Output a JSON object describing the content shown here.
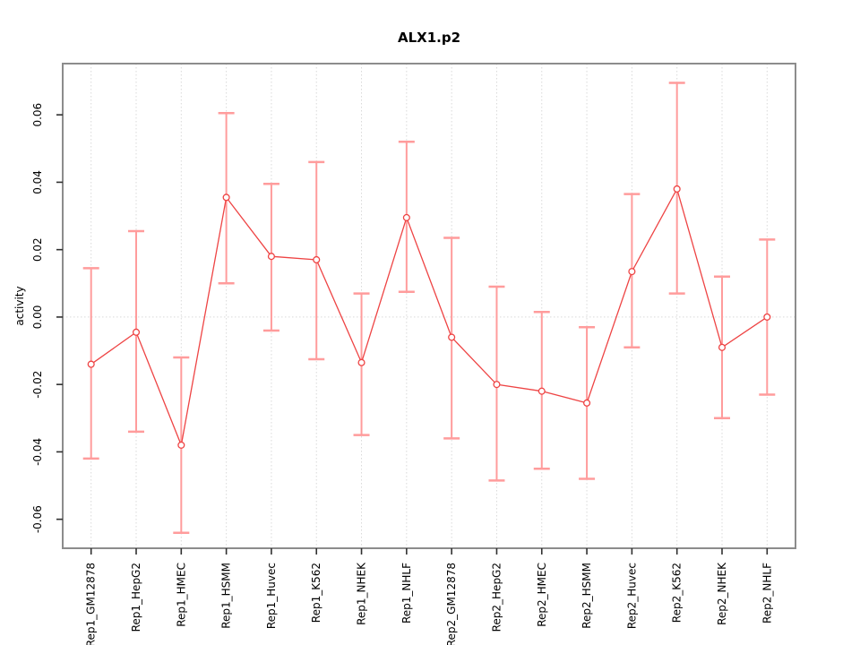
{
  "figure": {
    "title": "ALX1.p2"
  },
  "chart_data": {
    "type": "line",
    "title": "ALX1.p2",
    "xlabel": "",
    "ylabel": "activity",
    "legend": "none",
    "grid": {
      "vertical": "dotted-per-category",
      "horizontal": "dotted-at-zero"
    },
    "ylim": [
      -0.0686,
      0.0752
    ],
    "yticks": [
      0.06,
      0.04,
      0.02,
      0.0,
      -0.02,
      -0.04,
      -0.06
    ],
    "ytick_labels": [
      "0.06",
      "0.04",
      "0.02",
      "0.00",
      "-0.02",
      "-0.04",
      "-0.06"
    ],
    "categories": [
      "Rep1_GM12878",
      "Rep1_HepG2",
      "Rep1_HMEC",
      "Rep1_HSMM",
      "Rep1_Huvec",
      "Rep1_K562",
      "Rep1_NHEK",
      "Rep1_NHLF",
      "Rep2_GM12878",
      "Rep2_HepG2",
      "Rep2_HMEC",
      "Rep2_HSMM",
      "Rep2_Huvec",
      "Rep2_K562",
      "Rep2_NHEK",
      "Rep2_NHLF"
    ],
    "series": [
      {
        "name": "activity",
        "marker": "open-circle",
        "values": [
          -0.014,
          -0.0045,
          -0.038,
          0.0355,
          0.018,
          0.017,
          -0.0135,
          0.0295,
          -0.006,
          -0.02,
          -0.022,
          -0.0255,
          0.0135,
          0.038,
          -0.009,
          0.0
        ],
        "upper": [
          0.0145,
          0.0255,
          -0.012,
          0.0605,
          0.0395,
          0.046,
          0.007,
          0.052,
          0.0235,
          0.009,
          0.0015,
          -0.003,
          0.0365,
          0.0695,
          0.012,
          0.023
        ],
        "lower": [
          -0.042,
          -0.034,
          -0.064,
          0.01,
          -0.004,
          -0.0125,
          -0.035,
          0.0075,
          -0.036,
          -0.0485,
          -0.045,
          -0.048,
          -0.009,
          0.007,
          -0.03,
          -0.023
        ]
      }
    ],
    "colors": {
      "line": "#EE4444",
      "marker": "#EE4444",
      "error_bar": "#FF9C9C",
      "grid": "#D9D9D9",
      "frame": "#8C8C8C",
      "tick": "#303030",
      "text": "#000000",
      "background": "#FFFFFF"
    }
  }
}
